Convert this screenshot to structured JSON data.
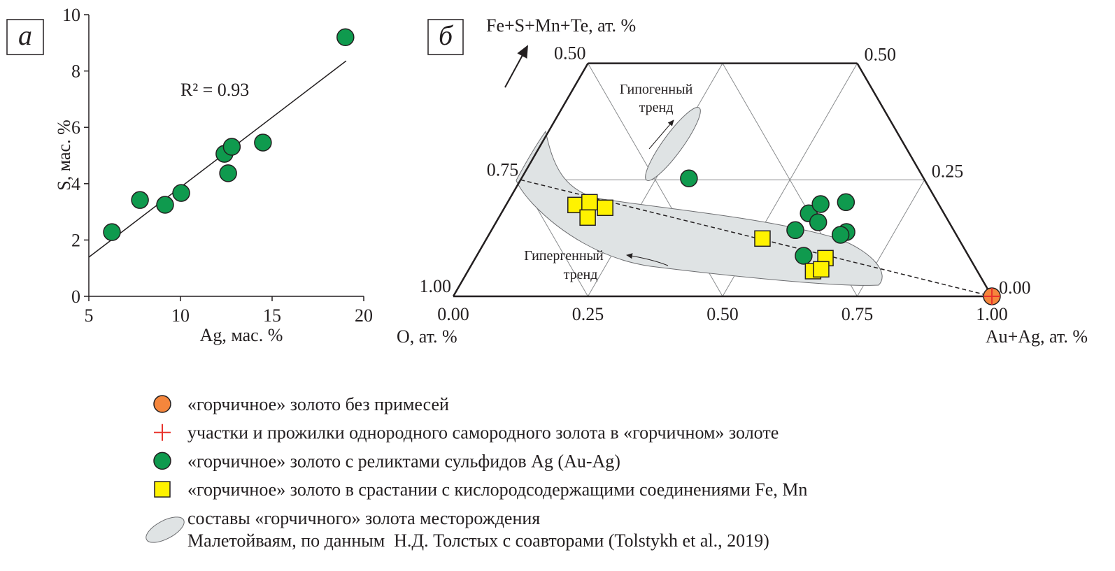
{
  "chart_data": [
    {
      "type": "scatter",
      "panel_label": "а",
      "xlabel": "Ag, мас. %",
      "ylabel": "S, мас. %",
      "annotation": "R² = 0.93",
      "color": "#0f9a4e",
      "x": [
        6.26,
        7.79,
        9.16,
        10.04,
        12.4,
        12.8,
        12.6,
        14.5,
        19.0
      ],
      "values": [
        2.28,
        3.42,
        3.25,
        3.67,
        5.06,
        5.31,
        4.37,
        5.46,
        9.2
      ],
      "trendline": {
        "x": [
          5,
          19.04
        ],
        "y": [
          1.39,
          8.36
        ]
      },
      "xlim": [
        5,
        20
      ],
      "ylim": [
        0,
        10
      ],
      "xticks": [
        5,
        10,
        15,
        20
      ],
      "yticks": [
        0,
        2,
        4,
        6,
        8,
        10
      ]
    },
    {
      "type": "ternary",
      "panel_label": "б",
      "top_label": "Fe+S+Mn+Te, ат. %",
      "left_label": "O, ат. %",
      "right_label": "Au+Ag, ат. %",
      "alim": [
        0,
        1
      ],
      "blim": [
        0,
        0.5
      ],
      "bottom_ticks": [
        {
          "value": 0,
          "label": "0.00"
        },
        {
          "value": 0.25,
          "label": "0.25"
        },
        {
          "value": 0.5,
          "label": "0.50"
        },
        {
          "value": 0.75,
          "label": "0.75"
        },
        {
          "value": 1,
          "label": "1.00"
        }
      ],
      "left_ticks": [
        {
          "value": 0.5,
          "label": "0.50"
        },
        {
          "value": 0.75,
          "label": "0.75"
        },
        {
          "value": 1,
          "label": "1.00"
        }
      ],
      "right_ticks": [
        {
          "value": 0,
          "label": "0.00"
        },
        {
          "value": 0.25,
          "label": "0.25"
        },
        {
          "value": 0.5,
          "label": "0.50"
        }
      ],
      "trend_line": {
        "a": [
          0,
          1
        ],
        "b": [
          0.25,
          0
        ]
      },
      "annotations": {
        "hypogene": [
          "Гипогенный",
          "тренд"
        ],
        "hypergene": [
          "Гипергенный",
          "тренд"
        ]
      },
      "series": [
        {
          "name": "«горчичное» золото без примесей",
          "color": "#f5863c",
          "marker": "circle",
          "a": [
            1
          ],
          "b": [
            0
          ]
        },
        {
          "name": "участки и прожилки однородного самородного золота в «горчичном» золоте",
          "color": "#e8322b",
          "marker": "plus",
          "a": [
            1
          ],
          "b": [
            0
          ]
        },
        {
          "name": "«горчичное» золото с реликтами сульфидов Ag (Au-Ag)",
          "color": "#0f9a4e",
          "marker": "circle",
          "a": [
            0.311,
            0.571,
            0.583,
            0.628,
            0.598,
            0.564,
            0.661,
            0.653,
            0.607
          ],
          "b": [
            0.253,
            0.178,
            0.198,
            0.202,
            0.159,
            0.142,
            0.138,
            0.132,
            0.087
          ]
        },
        {
          "name": "«горчичное» золото в срастании с кислородсодержащими соединениями Fe, Mn",
          "color": "#fff200",
          "marker": "square",
          "a": [
            0.129,
            0.152,
            0.187,
            0.165,
            0.512,
            0.65,
            0.641,
            0.654
          ],
          "b": [
            0.196,
            0.202,
            0.19,
            0.169,
            0.124,
            0.082,
            0.054,
            0.058
          ]
        }
      ],
      "region_label": [
        "составы «горчичного» золота месторождения",
        "Малетойваям, по данным  Н.Д. Толстых с соавторами (Tolstykh et al., 2019)"
      ]
    }
  ]
}
